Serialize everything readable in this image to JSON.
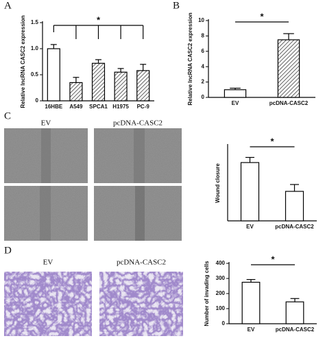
{
  "panels": {
    "letters": [
      "A",
      "B",
      "C",
      "D"
    ],
    "wound_labels": [
      "EV",
      "pcDNA-CASC2"
    ],
    "invasion_labels": [
      "EV",
      "pcDNA-CASC2"
    ]
  },
  "chart_data": [
    {
      "type": "bar",
      "y_label": "Relative lncRNA CASC2 expression",
      "annotation": "*",
      "categories": [
        "16HBE",
        "A549",
        "SPCA1",
        "H1975",
        "PC-9"
      ],
      "values": [
        1.0,
        0.35,
        0.72,
        0.55,
        0.58
      ],
      "errors": [
        0.08,
        0.1,
        0.07,
        0.07,
        0.12
      ],
      "patterns": [
        "none",
        "hatch",
        "hatch",
        "hatch",
        "hatch"
      ],
      "ylim": [
        0,
        1.5
      ],
      "yticks": [
        0,
        0.5,
        {
          "value": 1,
          "label": "1.0"
        },
        1.5
      ]
    },
    {
      "type": "bar",
      "y_label": "Relative lncRNA CASC2 expression",
      "annotation": "*",
      "categories": [
        "EV",
        "pcDNA-CASC2"
      ],
      "values": [
        1.0,
        7.5
      ],
      "errors": [
        0.2,
        0.8
      ],
      "patterns": [
        "none",
        "hatch"
      ],
      "ylim": [
        0,
        10
      ],
      "yticks": [
        0,
        2,
        4,
        6,
        8,
        10
      ]
    },
    {
      "type": "bar",
      "y_label": "Wound closure",
      "annotation": "*",
      "categories": [
        "EV",
        "pcDNA-CASC2"
      ],
      "values": [
        170,
        86
      ],
      "errors": [
        15,
        20
      ],
      "patterns": [
        "none",
        "none"
      ],
      "ylim": [
        0,
        220
      ]
    },
    {
      "type": "bar",
      "y_label": "Number of invading cells",
      "annotation": "*",
      "categories": [
        "EV",
        "pcDNA-CASC2"
      ],
      "values": [
        275,
        145
      ],
      "errors": [
        18,
        22
      ],
      "patterns": [
        "none",
        "none"
      ],
      "ylim": [
        0,
        400
      ],
      "yticks": [
        0,
        100,
        200,
        300,
        400
      ]
    }
  ]
}
